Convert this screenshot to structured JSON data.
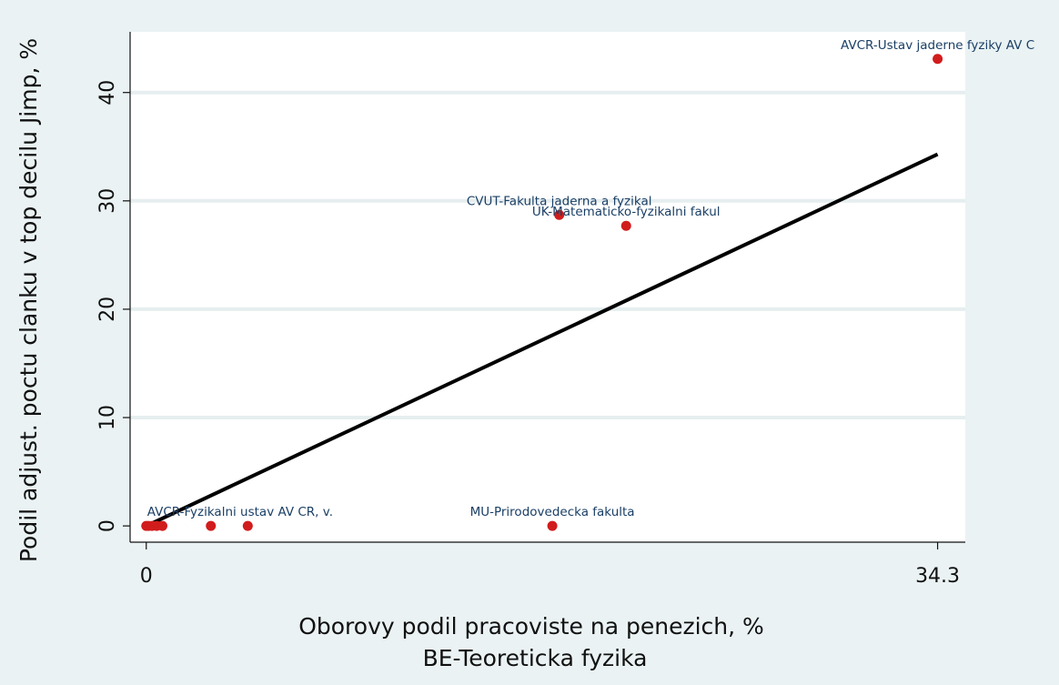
{
  "chart_data": {
    "type": "scatter",
    "xlabel": "Oborovy podil pracoviste na penezich, %",
    "xlabel2": "BE-Teoreticka fyzika",
    "ylabel": "Podil adjust. poctu clanku v top decilu Jimp, %",
    "xlim": [
      -0.7,
      35.5
    ],
    "ylim": [
      -1.5,
      45.6
    ],
    "xticks": [
      0,
      34.3
    ],
    "xtick_labels": [
      "0",
      "34.3"
    ],
    "yticks": [
      0,
      10,
      20,
      30,
      40
    ],
    "ytick_labels": [
      "0",
      "10",
      "20",
      "30",
      "40"
    ],
    "grid": true,
    "legend": "none",
    "colors": {
      "points": "#d11c1c",
      "fit_line": "#000000",
      "labels": "#1a3f66",
      "plot_bg": "#ffffff",
      "outer_bg": "#eaf2f3",
      "grid": "#e6eeef"
    },
    "series": [
      {
        "points": [
          {
            "x": 0.0,
            "y": 0.0,
            "label": "AVCR-Fyzikalni ustav AV CR, v."
          },
          {
            "x": 0.1,
            "y": 0.0,
            "label": ""
          },
          {
            "x": 0.25,
            "y": 0.0,
            "label": ""
          },
          {
            "x": 0.45,
            "y": 0.0,
            "label": ""
          },
          {
            "x": 0.7,
            "y": 0.0,
            "label": ""
          },
          {
            "x": 2.8,
            "y": 0.0,
            "label": ""
          },
          {
            "x": 4.4,
            "y": 0.0,
            "label": ""
          },
          {
            "x": 17.6,
            "y": 0.0,
            "label": "MU-Prirodovedecka fakulta"
          },
          {
            "x": 17.9,
            "y": 28.7,
            "label": "CVUT-Fakulta jaderna a fyzikal"
          },
          {
            "x": 20.8,
            "y": 27.7,
            "label": "UK-Matematicko-fyzikalni fakul"
          },
          {
            "x": 34.3,
            "y": 43.1,
            "label": "AVCR-Ustav jaderne fyziky AV C"
          }
        ]
      }
    ],
    "fit_line": {
      "x": [
        0,
        34.3
      ],
      "y": [
        0,
        34.3
      ]
    }
  }
}
